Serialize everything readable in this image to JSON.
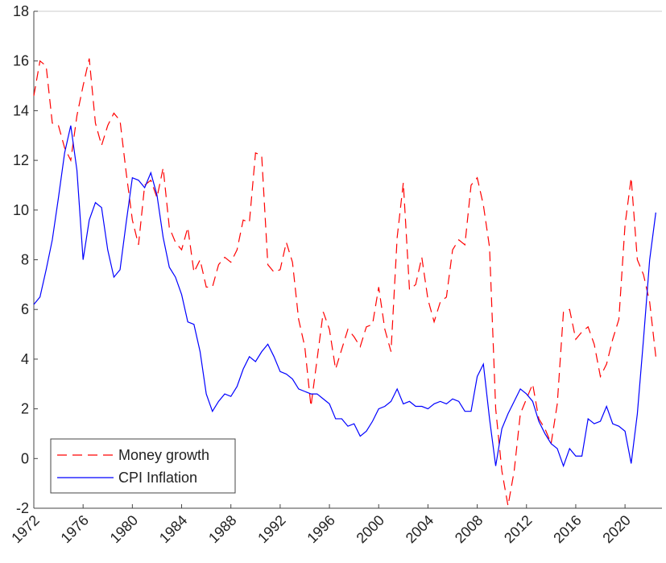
{
  "chart_data": {
    "type": "line",
    "x": [
      1972,
      1972.5,
      1973,
      1973.5,
      1974,
      1974.5,
      1975,
      1975.5,
      1976,
      1976.5,
      1977,
      1977.5,
      1978,
      1978.5,
      1979,
      1979.5,
      1980,
      1980.5,
      1981,
      1981.5,
      1982,
      1982.5,
      1983,
      1983.5,
      1984,
      1984.5,
      1985,
      1985.5,
      1986,
      1986.5,
      1987,
      1987.5,
      1988,
      1988.5,
      1989,
      1989.5,
      1990,
      1990.5,
      1991,
      1991.5,
      1992,
      1992.5,
      1993,
      1993.5,
      1994,
      1994.5,
      1995,
      1995.5,
      1996,
      1996.5,
      1997,
      1997.5,
      1998,
      1998.5,
      1999,
      1999.5,
      2000,
      2000.5,
      2001,
      2001.5,
      2002,
      2002.5,
      2003,
      2003.5,
      2004,
      2004.5,
      2005,
      2005.5,
      2006,
      2006.5,
      2007,
      2007.5,
      2008,
      2008.5,
      2009,
      2009.5,
      2010,
      2010.5,
      2011,
      2011.5,
      2012,
      2012.5,
      2013,
      2013.5,
      2014,
      2014.5,
      2015,
      2015.5,
      2016,
      2016.5,
      2017,
      2017.5,
      2018,
      2018.5,
      2019,
      2019.5,
      2020,
      2020.5,
      2021,
      2021.5,
      2022,
      2022.5
    ],
    "series": [
      {
        "name": "Money growth",
        "color": "#ff0000",
        "style": "dashed",
        "values": [
          14.6,
          16,
          15.8,
          13.5,
          13.4,
          12.5,
          12,
          13.8,
          15,
          16.1,
          13.5,
          12.6,
          13.4,
          13.9,
          13.6,
          11.5,
          9.6,
          8.6,
          11,
          11.2,
          10.5,
          11.7,
          9.3,
          8.7,
          8.4,
          9.3,
          7.5,
          8,
          6.9,
          6.9,
          7.8,
          8.1,
          7.9,
          8.4,
          9.6,
          9.5,
          12.3,
          12.2,
          7.8,
          7.5,
          7.6,
          8.7,
          7.9,
          5.6,
          4.5,
          2.1,
          4,
          5.9,
          5.2,
          3.6,
          4.4,
          5.2,
          4.9,
          4.5,
          5.3,
          5.4,
          6.9,
          5.2,
          4.3,
          8.9,
          11.1,
          6.8,
          7,
          8.1,
          6.4,
          5.5,
          6.3,
          6.5,
          8.4,
          8.8,
          8.6,
          11,
          11.3,
          10.2,
          8.5,
          2,
          -0.5,
          -1.9,
          -0.5,
          1.8,
          2.4,
          3,
          1.6,
          1.2,
          0.6,
          2.2,
          5.9,
          6,
          4.8,
          5.1,
          5.3,
          4.6,
          3.3,
          3.8,
          4.8,
          5.6,
          9.4,
          11.3,
          8,
          7.4,
          6.3,
          4.1
        ]
      },
      {
        "name": "CPI Inflation",
        "color": "#0000ff",
        "style": "solid",
        "values": [
          6.2,
          6.5,
          7.6,
          8.8,
          10.5,
          12.3,
          13.4,
          11.6,
          8,
          9.6,
          10.3,
          10.1,
          8.4,
          7.3,
          7.6,
          9.5,
          11.3,
          11.2,
          10.9,
          11.5,
          10.6,
          8.9,
          7.7,
          7.3,
          6.6,
          5.5,
          5.4,
          4.3,
          2.6,
          1.9,
          2.3,
          2.6,
          2.5,
          2.9,
          3.6,
          4.1,
          3.9,
          4.3,
          4.6,
          4.1,
          3.5,
          3.4,
          3.2,
          2.8,
          2.7,
          2.6,
          2.6,
          2.4,
          2.2,
          1.6,
          1.6,
          1.3,
          1.4,
          0.9,
          1.1,
          1.5,
          2,
          2.1,
          2.3,
          2.8,
          2.2,
          2.3,
          2.1,
          2.1,
          2,
          2.2,
          2.3,
          2.2,
          2.4,
          2.3,
          1.9,
          1.9,
          3.3,
          3.8,
          1.6,
          -0.3,
          1.2,
          1.8,
          2.3,
          2.8,
          2.6,
          2.3,
          1.5,
          1,
          0.6,
          0.4,
          -0.3,
          0.4,
          0.1,
          0.1,
          1.6,
          1.4,
          1.5,
          2.1,
          1.4,
          1.3,
          1.1,
          -0.2,
          1.8,
          4.8,
          8,
          9.9
        ]
      }
    ],
    "xlim": [
      1972,
      2023
    ],
    "xticks": [
      1972,
      1976,
      1980,
      1984,
      1988,
      1992,
      1996,
      2000,
      2004,
      2008,
      2012,
      2016,
      2020
    ],
    "ylim": [
      -2,
      18
    ],
    "yticks": [
      -2,
      0,
      2,
      4,
      6,
      8,
      10,
      12,
      14,
      16,
      18
    ],
    "legend": "lower left"
  }
}
